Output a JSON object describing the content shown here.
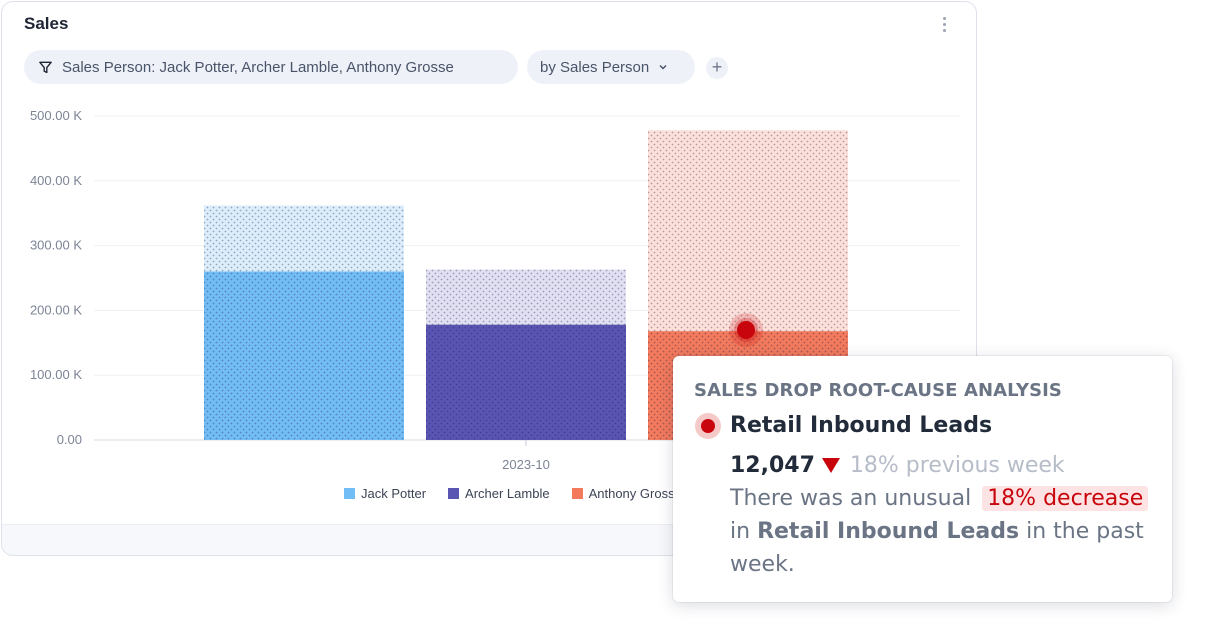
{
  "card": {
    "title": "Sales",
    "menu_icon": "kebab-menu-icon"
  },
  "filters": {
    "filter_icon": "filter-icon",
    "filter_label": "Sales Person: Jack Potter, Archer Lamble, Anthony Grosse",
    "group_label": "by Sales Person",
    "group_icon": "chevron-down-icon",
    "add_label": "+"
  },
  "chart_data": {
    "type": "bar",
    "categories": [
      "2023-10"
    ],
    "y_ticks": [
      "0.00",
      "100.00 K",
      "200.00 K",
      "300.00 K",
      "400.00 K",
      "500.00 K"
    ],
    "ylim": [
      0,
      500000
    ],
    "series": [
      {
        "name": "Jack Potter",
        "values": [
          260000
        ],
        "comparison_values": [
          362000
        ],
        "color": "#72bdf6",
        "comparison_color": "#dcedfc"
      },
      {
        "name": "Archer Lamble",
        "values": [
          178000
        ],
        "comparison_values": [
          263000
        ],
        "color": "#5a55b3",
        "comparison_color": "#e1e0f3"
      },
      {
        "name": "Anthony Grosse",
        "values": [
          168000
        ],
        "comparison_values": [
          478000
        ],
        "color": "#f37a5d",
        "comparison_color": "#fde0d9"
      }
    ],
    "legend_position": "bottom",
    "grid": true
  },
  "legend": [
    {
      "label": "Jack Potter",
      "color": "#72bdf6"
    },
    {
      "label": "Archer Lamble",
      "color": "#5a55b3"
    },
    {
      "label": "Anthony Grosse",
      "color": "#f37a5d"
    }
  ],
  "tooltip": {
    "heading": "SALES DROP ROOT-CAUSE ANALYSIS",
    "metric": "Retail Inbound Leads",
    "value": "12,047",
    "previous": "18% previous week",
    "body_prefix": "There was an unusual",
    "badge": "18% decrease",
    "body_in": "in",
    "body_metric": "Retail Inbound Leads",
    "body_suffix": "in the past week.",
    "accent": "#c8050c"
  }
}
